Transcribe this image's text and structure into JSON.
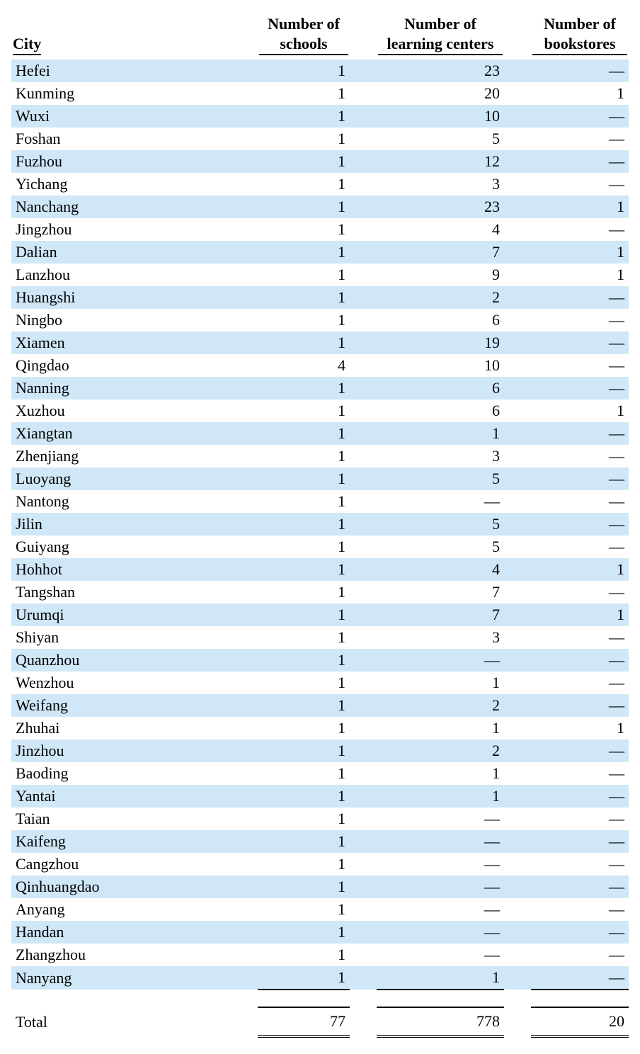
{
  "table": {
    "type": "table",
    "colors": {
      "stripe": "#cfe7f7",
      "background": "#ffffff",
      "text": "#000000",
      "rule": "#000000"
    },
    "font": {
      "family": "Times New Roman",
      "size_pt": 16,
      "header_weight": "bold"
    },
    "dash_glyph": "—",
    "columns": [
      {
        "key": "city",
        "label_lines": [
          "City"
        ],
        "align": "left"
      },
      {
        "key": "schools",
        "label_lines": [
          "Number of",
          "schools"
        ],
        "align": "right"
      },
      {
        "key": "learn",
        "label_lines": [
          "Number of",
          "learning centers"
        ],
        "align": "right"
      },
      {
        "key": "books",
        "label_lines": [
          "Number of",
          "bookstores"
        ],
        "align": "right"
      }
    ],
    "rows": [
      {
        "city": "Hefei",
        "schools": 1,
        "learn": 23,
        "books": null
      },
      {
        "city": "Kunming",
        "schools": 1,
        "learn": 20,
        "books": 1
      },
      {
        "city": "Wuxi",
        "schools": 1,
        "learn": 10,
        "books": null
      },
      {
        "city": "Foshan",
        "schools": 1,
        "learn": 5,
        "books": null
      },
      {
        "city": "Fuzhou",
        "schools": 1,
        "learn": 12,
        "books": null
      },
      {
        "city": "Yichang",
        "schools": 1,
        "learn": 3,
        "books": null
      },
      {
        "city": "Nanchang",
        "schools": 1,
        "learn": 23,
        "books": 1
      },
      {
        "city": "Jingzhou",
        "schools": 1,
        "learn": 4,
        "books": null
      },
      {
        "city": "Dalian",
        "schools": 1,
        "learn": 7,
        "books": 1
      },
      {
        "city": "Lanzhou",
        "schools": 1,
        "learn": 9,
        "books": 1
      },
      {
        "city": "Huangshi",
        "schools": 1,
        "learn": 2,
        "books": null
      },
      {
        "city": "Ningbo",
        "schools": 1,
        "learn": 6,
        "books": null
      },
      {
        "city": "Xiamen",
        "schools": 1,
        "learn": 19,
        "books": null
      },
      {
        "city": "Qingdao",
        "schools": 4,
        "learn": 10,
        "books": null
      },
      {
        "city": "Nanning",
        "schools": 1,
        "learn": 6,
        "books": null
      },
      {
        "city": "Xuzhou",
        "schools": 1,
        "learn": 6,
        "books": 1
      },
      {
        "city": "Xiangtan",
        "schools": 1,
        "learn": 1,
        "books": null
      },
      {
        "city": "Zhenjiang",
        "schools": 1,
        "learn": 3,
        "books": null
      },
      {
        "city": "Luoyang",
        "schools": 1,
        "learn": 5,
        "books": null
      },
      {
        "city": "Nantong",
        "schools": 1,
        "learn": null,
        "books": null
      },
      {
        "city": "Jilin",
        "schools": 1,
        "learn": 5,
        "books": null
      },
      {
        "city": "Guiyang",
        "schools": 1,
        "learn": 5,
        "books": null
      },
      {
        "city": "Hohhot",
        "schools": 1,
        "learn": 4,
        "books": 1
      },
      {
        "city": "Tangshan",
        "schools": 1,
        "learn": 7,
        "books": null
      },
      {
        "city": "Urumqi",
        "schools": 1,
        "learn": 7,
        "books": 1
      },
      {
        "city": "Shiyan",
        "schools": 1,
        "learn": 3,
        "books": null
      },
      {
        "city": "Quanzhou",
        "schools": 1,
        "learn": null,
        "books": null
      },
      {
        "city": "Wenzhou",
        "schools": 1,
        "learn": 1,
        "books": null
      },
      {
        "city": "Weifang",
        "schools": 1,
        "learn": 2,
        "books": null
      },
      {
        "city": "Zhuhai",
        "schools": 1,
        "learn": 1,
        "books": 1
      },
      {
        "city": "Jinzhou",
        "schools": 1,
        "learn": 2,
        "books": null
      },
      {
        "city": "Baoding",
        "schools": 1,
        "learn": 1,
        "books": null
      },
      {
        "city": "Yantai",
        "schools": 1,
        "learn": 1,
        "books": null
      },
      {
        "city": "Taian",
        "schools": 1,
        "learn": null,
        "books": null
      },
      {
        "city": "Kaifeng",
        "schools": 1,
        "learn": null,
        "books": null
      },
      {
        "city": "Cangzhou",
        "schools": 1,
        "learn": null,
        "books": null
      },
      {
        "city": "Qinhuangdao",
        "schools": 1,
        "learn": null,
        "books": null
      },
      {
        "city": "Anyang",
        "schools": 1,
        "learn": null,
        "books": null
      },
      {
        "city": "Handan",
        "schools": 1,
        "learn": null,
        "books": null
      },
      {
        "city": "Zhangzhou",
        "schools": 1,
        "learn": null,
        "books": null
      },
      {
        "city": "Nanyang",
        "schools": 1,
        "learn": 1,
        "books": null
      }
    ],
    "total": {
      "label": "Total",
      "schools": 77,
      "learn": 778,
      "books": 20
    }
  }
}
